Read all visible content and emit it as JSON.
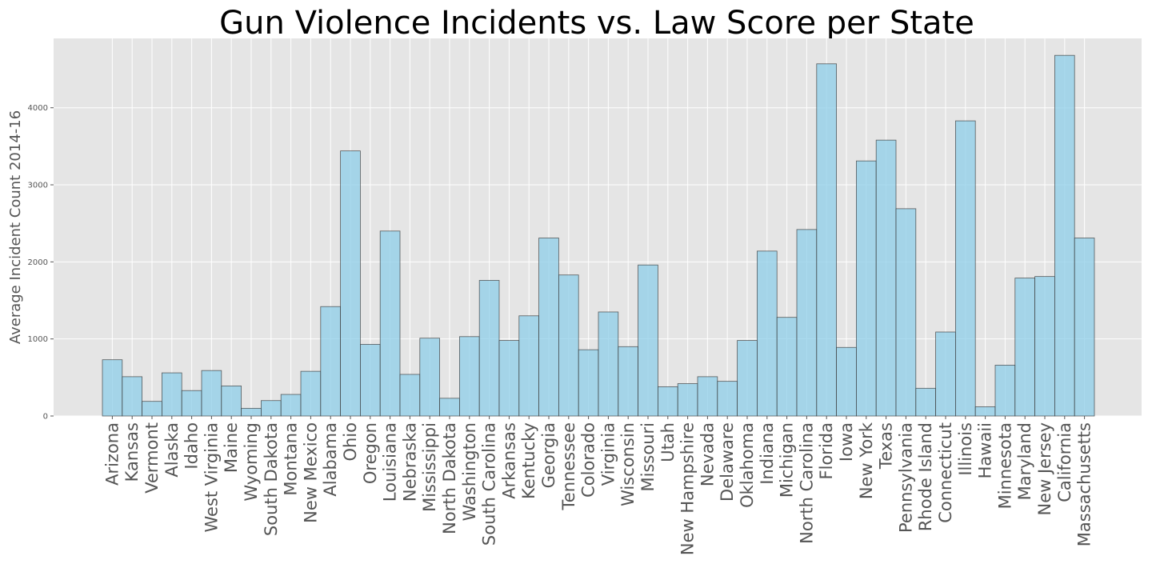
{
  "chart_data": {
    "type": "bar",
    "title": "Gun Violence Incidents vs. Law Score per State",
    "xlabel": "",
    "ylabel": "Average Incident Count 2014-16",
    "ylim": [
      0,
      4900
    ],
    "yticks": [
      0,
      1000,
      2000,
      3000,
      4000
    ],
    "ytick_labels": [
      "0",
      "1000",
      "2000",
      "3000",
      "4000"
    ],
    "grid": true,
    "bar_color": "#8ecde8",
    "edge_color": "#3a3a3a",
    "plot_background": "#e5e5e5",
    "categories": [
      "Arizona",
      "Kansas",
      "Vermont",
      "Alaska",
      "Idaho",
      "West Virginia",
      "Maine",
      "Wyoming",
      "South Dakota",
      "Montana",
      "New Mexico",
      "Alabama",
      "Ohio",
      "Oregon",
      "Louisiana",
      "Nebraska",
      "Mississippi",
      "North Dakota",
      "Washington",
      "South Carolina",
      "Arkansas",
      "Kentucky",
      "Georgia",
      "Tennessee",
      "Colorado",
      "Virginia",
      "Wisconsin",
      "Missouri",
      "Utah",
      "New Hampshire",
      "Nevada",
      "Delaware",
      "Oklahoma",
      "Indiana",
      "Michigan",
      "North Carolina",
      "Florida",
      "Iowa",
      "New York",
      "Texas",
      "Pennsylvania",
      "Rhode Island",
      "Connecticut",
      "Illinois",
      "Hawaii",
      "Minnesota",
      "Maryland",
      "New Jersey",
      "California",
      "Massachusetts"
    ],
    "values": [
      730,
      510,
      190,
      560,
      330,
      590,
      390,
      100,
      200,
      280,
      580,
      1420,
      3440,
      930,
      2400,
      540,
      1010,
      230,
      1030,
      1760,
      980,
      1300,
      2310,
      1830,
      860,
      1350,
      900,
      1960,
      380,
      420,
      510,
      450,
      980,
      2140,
      1280,
      2420,
      4570,
      890,
      3310,
      3580,
      2690,
      360,
      1090,
      3830,
      120,
      660,
      1790,
      1810,
      4680,
      2310
    ]
  }
}
